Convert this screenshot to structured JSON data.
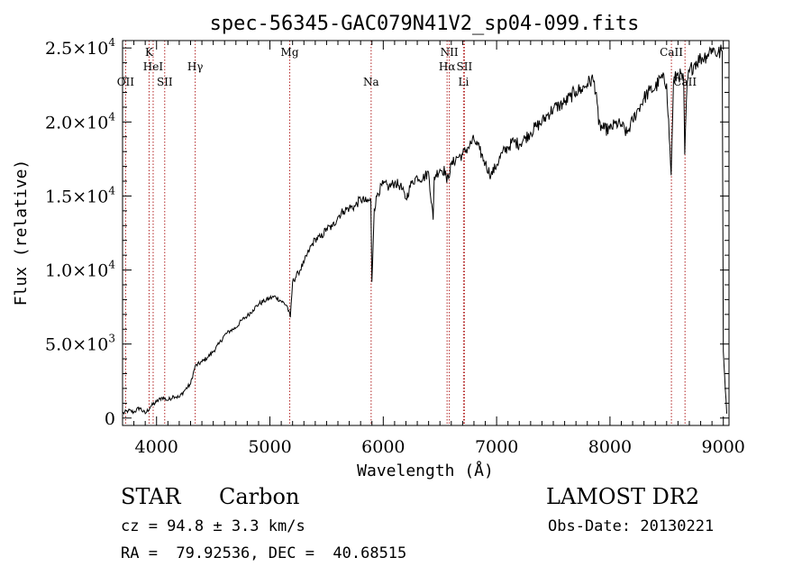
{
  "chart_data": {
    "type": "line",
    "title": "spec-56345-GAC079N41V2_sp04-099.fits",
    "xlabel": "Wavelength (Å)",
    "ylabel": "Flux (relative)",
    "xlim": [
      3700,
      9050
    ],
    "ylim": [
      -500,
      25500
    ],
    "x_ticks": [
      {
        "value": 4000,
        "label": "4000"
      },
      {
        "value": 5000,
        "label": "5000"
      },
      {
        "value": 6000,
        "label": "6000"
      },
      {
        "value": 7000,
        "label": "7000"
      },
      {
        "value": 8000,
        "label": "8000"
      },
      {
        "value": 9000,
        "label": "9000"
      }
    ],
    "y_ticks": [
      {
        "value": 0,
        "mant": "0",
        "exp": ""
      },
      {
        "value": 5000,
        "mant": "5.0×10",
        "exp": "3"
      },
      {
        "value": 10000,
        "mant": "1.0×10",
        "exp": "4"
      },
      {
        "value": 15000,
        "mant": "1.5×10",
        "exp": "4"
      },
      {
        "value": 20000,
        "mant": "2.0×10",
        "exp": "4"
      },
      {
        "value": 25000,
        "mant": "2.5×10",
        "exp": "4"
      }
    ],
    "grid": false,
    "series": [
      {
        "line_color": "#000000",
        "x": [
          3700,
          3750,
          3800,
          3850,
          3900,
          3950,
          4000,
          4050,
          4100,
          4150,
          4200,
          4250,
          4300,
          4340,
          4400,
          4450,
          4500,
          4550,
          4600,
          4650,
          4700,
          4750,
          4800,
          4850,
          4900,
          4950,
          5000,
          5050,
          5100,
          5150,
          5180,
          5200,
          5250,
          5300,
          5350,
          5400,
          5450,
          5500,
          5550,
          5600,
          5650,
          5700,
          5750,
          5800,
          5850,
          5890,
          5900,
          5920,
          5950,
          6000,
          6050,
          6100,
          6150,
          6200,
          6250,
          6300,
          6350,
          6400,
          6440,
          6450,
          6500,
          6550,
          6560,
          6600,
          6650,
          6700,
          6750,
          6800,
          6850,
          6900,
          6950,
          7000,
          7050,
          7100,
          7150,
          7200,
          7250,
          7300,
          7350,
          7400,
          7450,
          7500,
          7550,
          7600,
          7650,
          7700,
          7750,
          7800,
          7850,
          7880,
          7900,
          7950,
          8000,
          8050,
          8100,
          8150,
          8200,
          8250,
          8300,
          8350,
          8400,
          8450,
          8500,
          8540,
          8560,
          8600,
          8650,
          8660,
          8680,
          8700,
          8750,
          8800,
          8850,
          8900,
          8950,
          8990,
          9000,
          9030
        ],
        "y": [
          300,
          500,
          400,
          700,
          300,
          800,
          1100,
          1400,
          1200,
          1500,
          1400,
          1900,
          2300,
          3500,
          3800,
          4100,
          4500,
          5000,
          5600,
          5900,
          6100,
          6600,
          6900,
          7300,
          7700,
          7900,
          8100,
          8200,
          7900,
          7600,
          6800,
          9200,
          9800,
          10500,
          11400,
          12100,
          12200,
          12800,
          12900,
          13600,
          14000,
          14200,
          14300,
          14800,
          14600,
          14700,
          9200,
          14100,
          15200,
          15800,
          15600,
          15900,
          15700,
          14800,
          15900,
          16300,
          16200,
          16600,
          13400,
          16300,
          16800,
          16700,
          15900,
          17100,
          17600,
          17800,
          18300,
          18800,
          18100,
          17200,
          16400,
          17100,
          17900,
          18300,
          18700,
          18500,
          18900,
          19300,
          19700,
          20000,
          20500,
          20900,
          21100,
          21300,
          21700,
          22100,
          22200,
          22600,
          22900,
          22000,
          19800,
          19500,
          19500,
          19900,
          19800,
          19200,
          20100,
          20900,
          21600,
          22100,
          22300,
          23000,
          22600,
          16400,
          22700,
          23300,
          22800,
          17800,
          22600,
          23400,
          24000,
          24300,
          24500,
          25000,
          24600,
          24800,
          4500,
          300
        ]
      }
    ],
    "lines": [
      {
        "label": "OII",
        "x": 3727,
        "row": 3
      },
      {
        "label": "K",
        "x": 3934,
        "row": 1
      },
      {
        "label": "HeI",
        "x": 3970,
        "row": 2
      },
      {
        "label": "SII",
        "x": 4072,
        "row": 3
      },
      {
        "label": "Hγ",
        "x": 4341,
        "row": 2
      },
      {
        "label": "Mg",
        "x": 5175,
        "row": 1
      },
      {
        "label": "Na",
        "x": 5893,
        "row": 3
      },
      {
        "label": "NII",
        "x": 6583,
        "row": 1
      },
      {
        "label": "Hα",
        "x": 6563,
        "row": 2
      },
      {
        "label": "SII",
        "x": 6716,
        "row": 2
      },
      {
        "label": "Li",
        "x": 6708,
        "row": 3
      },
      {
        "label": "CaII",
        "x": 8542,
        "row": 1
      },
      {
        "label": "CaII",
        "x": 8662,
        "row": 3
      }
    ]
  },
  "info": {
    "class": "STAR",
    "subclass": "Carbon",
    "survey": "LAMOST DR2",
    "cz": "cz = 94.8 ± 3.3 km/s",
    "obs_date": "Obs-Date: 20130221",
    "coords": "RA =  79.92536, DEC =  40.68515"
  }
}
